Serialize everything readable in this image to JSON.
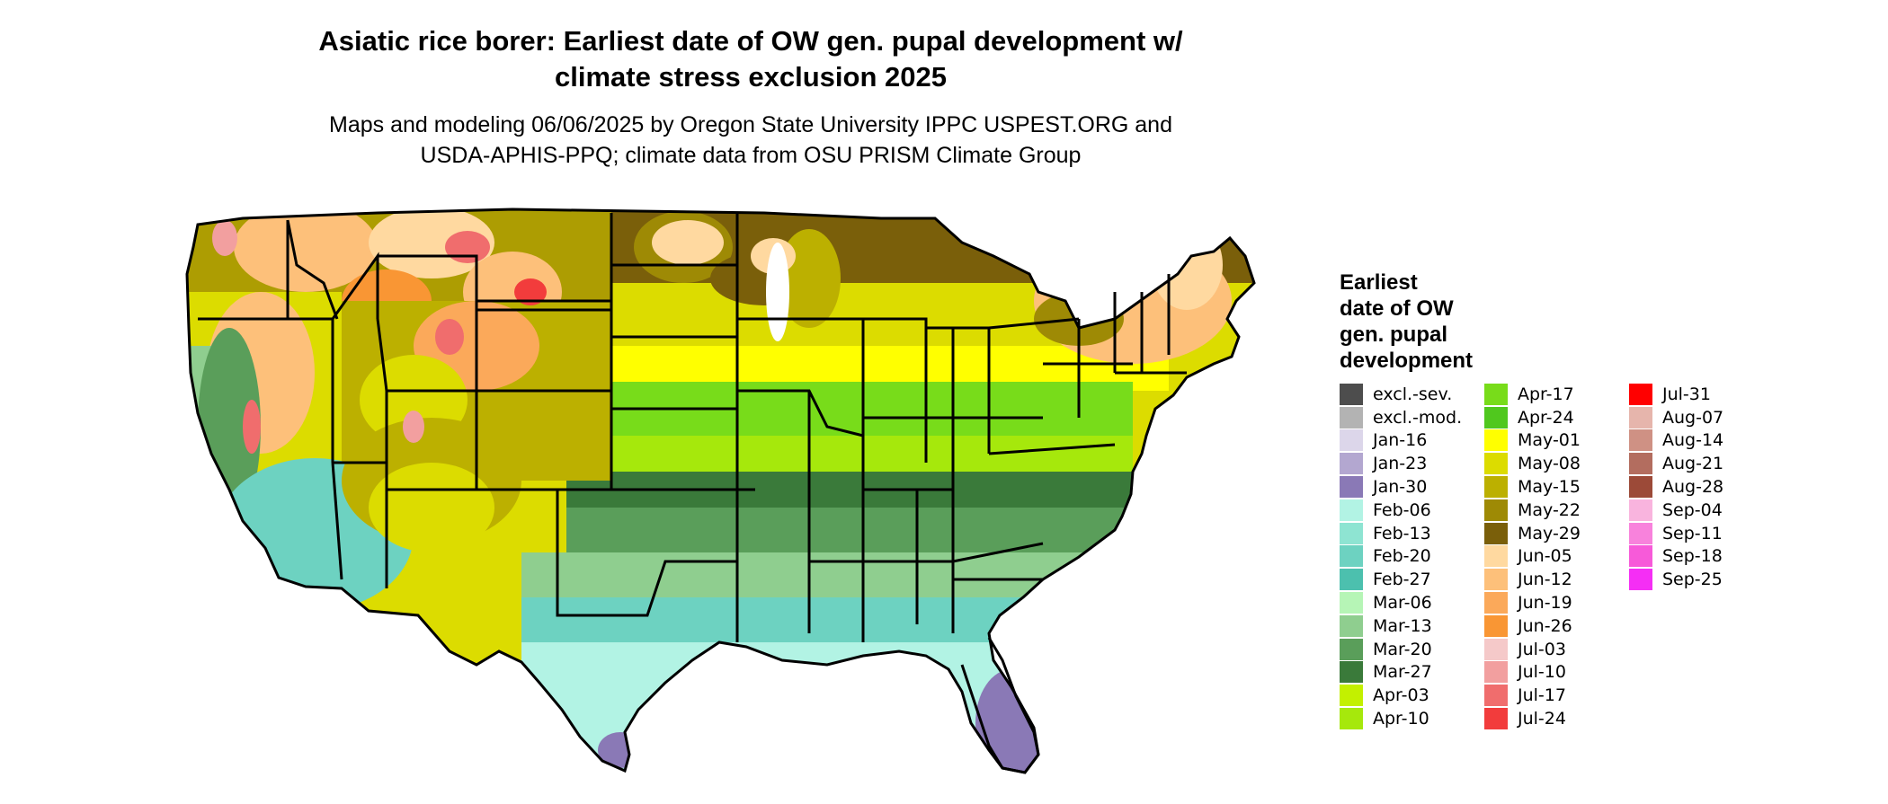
{
  "title_line1": "Asiatic rice borer: Earliest date of OW gen. pupal development w/",
  "title_line2": "climate stress exclusion 2025",
  "subtitle_line1": "Maps and modeling 06/06/2025 by Oregon State University IPPC USPEST.ORG and",
  "subtitle_line2": "USDA-APHIS-PPQ; climate data from OSU PRISM Climate Group",
  "legend": {
    "title_lines": [
      "Earliest",
      "date of OW",
      "gen. pupal",
      "development"
    ],
    "items": [
      {
        "label": "excl.-sev.",
        "color": "#4d4d4d"
      },
      {
        "label": "excl.-mod.",
        "color": "#b3b3b3"
      },
      {
        "label": "Jan-16",
        "color": "#dcd6ea"
      },
      {
        "label": "Jan-23",
        "color": "#b3a7d0"
      },
      {
        "label": "Jan-30",
        "color": "#8a79b6"
      },
      {
        "label": "Feb-06",
        "color": "#b2f3e4"
      },
      {
        "label": "Feb-13",
        "color": "#8ee4d2"
      },
      {
        "label": "Feb-20",
        "color": "#6dd2c1"
      },
      {
        "label": "Feb-27",
        "color": "#4cc0ae"
      },
      {
        "label": "Mar-06",
        "color": "#b6f5b6"
      },
      {
        "label": "Mar-13",
        "color": "#8fce8f"
      },
      {
        "label": "Mar-20",
        "color": "#5a9e5a"
      },
      {
        "label": "Mar-27",
        "color": "#3a7a3a"
      },
      {
        "label": "Apr-03",
        "color": "#c3f000"
      },
      {
        "label": "Apr-10",
        "color": "#a6e80c"
      },
      {
        "label": "Apr-17",
        "color": "#78dc1a"
      },
      {
        "label": "Apr-24",
        "color": "#50c81e"
      },
      {
        "label": "May-01",
        "color": "#ffff00"
      },
      {
        "label": "May-08",
        "color": "#dcdc00"
      },
      {
        "label": "May-15",
        "color": "#bcb000"
      },
      {
        "label": "May-22",
        "color": "#9e8a05"
      },
      {
        "label": "May-29",
        "color": "#7a5f0a"
      },
      {
        "label": "Jun-05",
        "color": "#ffd9a0"
      },
      {
        "label": "Jun-12",
        "color": "#fdc07a"
      },
      {
        "label": "Jun-19",
        "color": "#fba95a"
      },
      {
        "label": "Jun-26",
        "color": "#f99634"
      },
      {
        "label": "Jul-03",
        "color": "#f5c9c9"
      },
      {
        "label": "Jul-10",
        "color": "#f29f9f"
      },
      {
        "label": "Jul-17",
        "color": "#f06d6d"
      },
      {
        "label": "Jul-24",
        "color": "#f23c3c"
      },
      {
        "label": "Jul-31",
        "color": "#ff0000"
      },
      {
        "label": "Aug-07",
        "color": "#e6b5ac"
      },
      {
        "label": "Aug-14",
        "color": "#cf9184"
      },
      {
        "label": "Aug-21",
        "color": "#b36d5f"
      },
      {
        "label": "Aug-28",
        "color": "#9c4a38"
      },
      {
        "label": "Sep-04",
        "color": "#f9b4de"
      },
      {
        "label": "Sep-11",
        "color": "#f882dc"
      },
      {
        "label": "Sep-18",
        "color": "#f75ad9"
      },
      {
        "label": "Sep-25",
        "color": "#f52ef5"
      }
    ]
  },
  "map": {
    "region": "conterminous United States",
    "color_regions": [
      {
        "name": "northwest-mountains",
        "color": "#9e8a05"
      },
      {
        "name": "northern-plains",
        "color": "#7a5f0a"
      },
      {
        "name": "northern-great-lakes",
        "color": "#9e8a05"
      },
      {
        "name": "high-country",
        "color": "#ffd9a0"
      },
      {
        "name": "central-plains",
        "color": "#dcdc00"
      },
      {
        "name": "midwest-band",
        "color": "#ffff00"
      },
      {
        "name": "central-band",
        "color": "#78dc1a"
      },
      {
        "name": "mid-south-band",
        "color": "#a6e80c"
      },
      {
        "name": "southern-band",
        "color": "#5a9e5a"
      },
      {
        "name": "gulf-coast",
        "color": "#8fce8f"
      },
      {
        "name": "south-texas",
        "color": "#6dd2c1"
      },
      {
        "name": "deep-south-tip",
        "color": "#b2f3e4"
      },
      {
        "name": "florida-peninsula",
        "color": "#8a79b6"
      },
      {
        "name": "desert-southwest",
        "color": "#6dd2c1"
      },
      {
        "name": "california-coast",
        "color": "#8fce8f"
      },
      {
        "name": "northeast",
        "color": "#fdc07a"
      },
      {
        "name": "mountain-peaks",
        "color": "#f06d6d"
      }
    ]
  }
}
